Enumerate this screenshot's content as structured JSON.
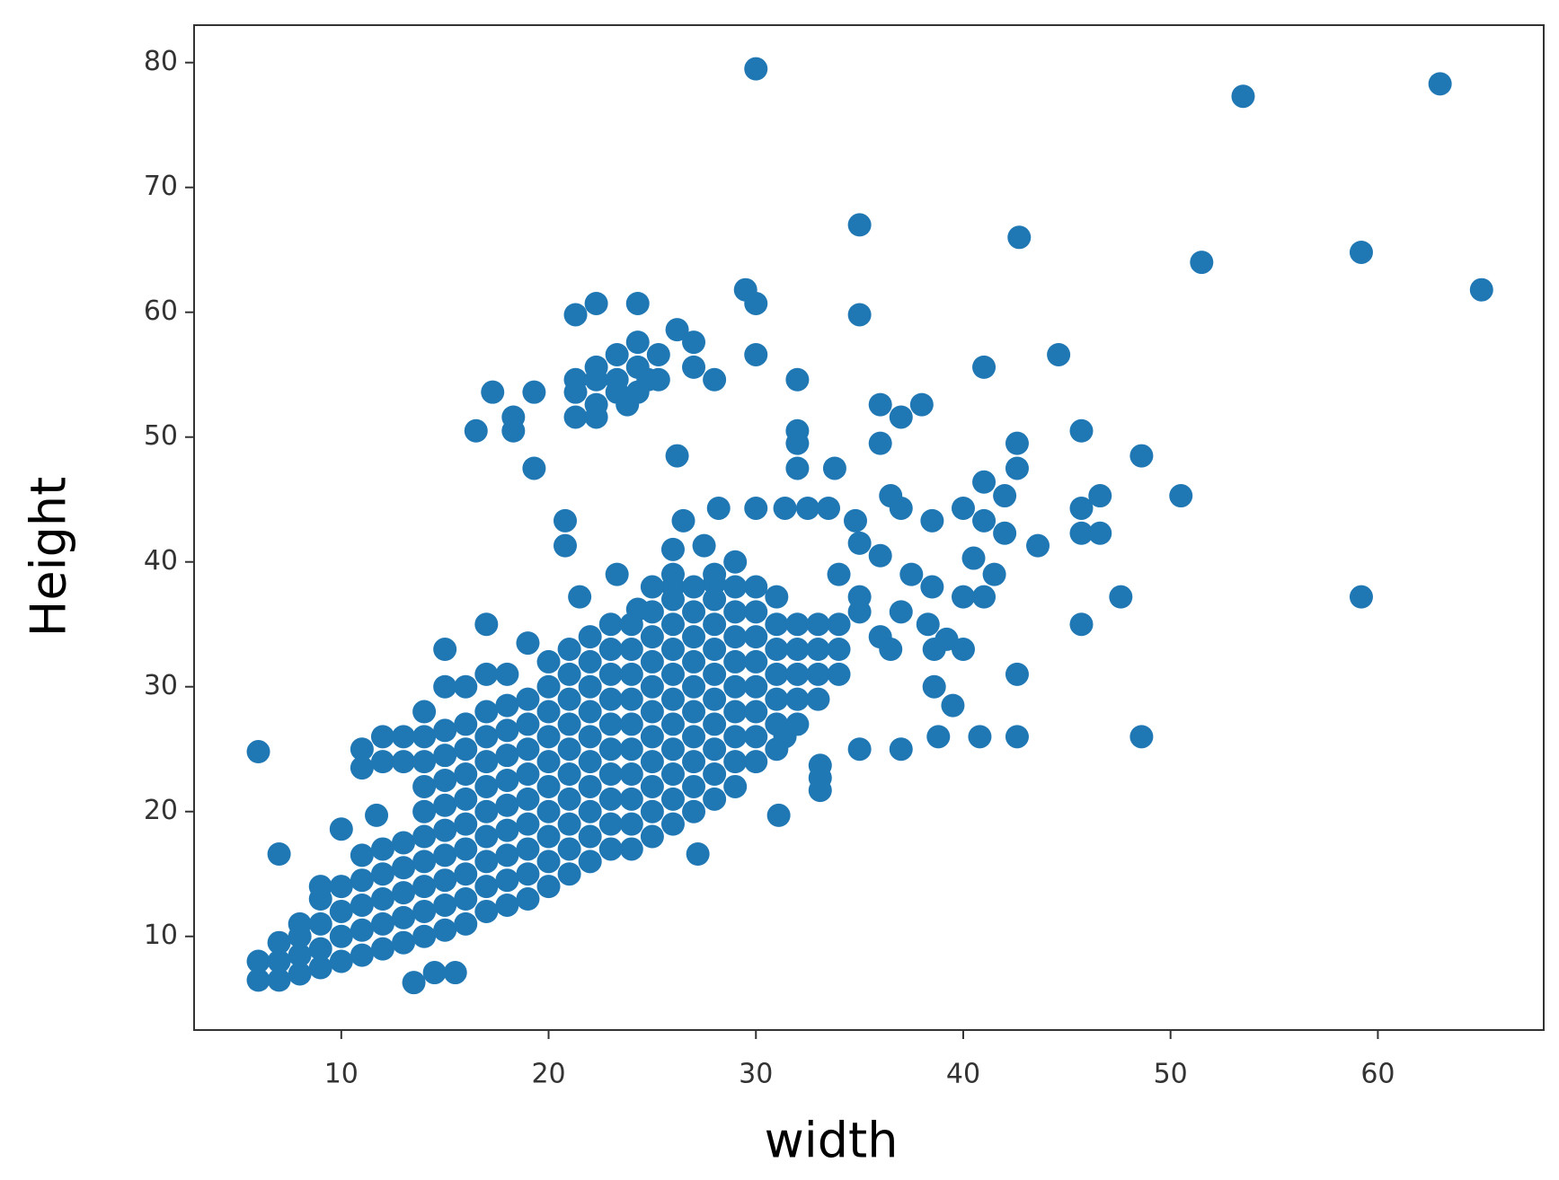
{
  "chart_data": {
    "type": "scatter",
    "x_label": "width",
    "y_label": "Height",
    "color": "#1f77b4",
    "grid": false,
    "xlim": [
      2.9,
      68
    ],
    "ylim": [
      2.5,
      83
    ],
    "xticks": [
      10,
      20,
      30,
      40,
      50,
      60
    ],
    "yticks": [
      10,
      20,
      30,
      40,
      50,
      60,
      70,
      80
    ],
    "x": [
      30,
      53.5,
      63,
      35,
      42.7,
      51.5,
      59.2,
      65,
      29.5,
      30,
      22.3,
      21.3,
      24.3,
      35,
      30,
      41,
      44.6,
      32,
      28,
      36,
      37,
      38,
      17.3,
      19.3,
      16.5,
      18.3,
      18.3,
      26.2,
      32,
      32,
      32,
      36,
      42.6,
      42.6,
      45.7,
      48.6,
      50.5,
      33.8,
      19.3,
      20.8,
      20.8,
      43.6,
      45.7,
      46.6,
      45.7,
      46.6,
      47.6,
      59.2,
      45.7,
      48.6,
      42.6,
      40.8,
      38.8,
      42.6,
      40,
      39.5,
      38.6,
      37,
      35,
      31.4,
      31.1,
      27.2,
      33.1,
      33.1,
      33.1,
      6,
      7,
      10,
      11.7,
      13.5,
      14.5,
      15.5,
      21.3,
      21.3,
      21.3,
      22.3,
      22.3,
      22.3,
      22.3,
      23.3,
      23.3,
      23.3,
      24.3,
      24.3,
      24.3,
      25.3,
      25.3,
      26.2,
      27,
      27,
      24.8,
      23.8,
      28.2,
      30,
      31.4,
      32.5,
      33.5,
      34.8,
      36.5,
      37,
      38.5,
      40,
      41,
      42,
      41,
      42,
      40.5,
      41.5,
      41,
      40,
      38.5,
      37.5,
      36,
      35,
      34,
      35,
      37,
      36,
      38.3,
      39.2,
      38.6,
      36.5,
      35,
      26.5,
      27.5,
      26,
      21.5,
      23.3,
      24.3,
      26,
      29,
      28,
      30,
      31,
      6,
      6,
      7,
      7,
      7,
      8,
      8,
      8,
      8,
      9,
      9,
      9,
      9,
      9,
      10,
      10,
      10,
      10,
      11,
      11,
      11,
      11,
      11,
      11,
      11,
      12,
      12,
      12,
      12,
      12,
      12,
      12,
      13,
      13,
      13,
      13,
      13,
      13,
      13,
      14,
      14,
      14,
      14,
      14,
      14,
      14,
      14,
      14,
      14,
      15,
      15,
      15,
      15,
      15,
      15,
      15,
      15,
      15,
      15,
      15,
      16,
      16,
      16,
      16,
      16,
      16,
      16,
      16,
      16,
      16,
      17,
      17,
      17,
      17,
      17,
      17,
      17,
      17,
      17,
      17,
      17,
      18,
      18,
      18,
      18,
      18,
      18,
      18,
      18,
      18,
      18,
      19,
      19,
      19,
      19,
      19,
      19,
      19,
      19,
      19,
      19,
      20,
      20,
      20,
      20,
      20,
      20,
      20,
      20,
      20,
      20,
      21,
      21,
      21,
      21,
      21,
      21,
      21,
      21,
      21,
      21,
      22,
      22,
      22,
      22,
      22,
      22,
      22,
      22,
      22,
      22,
      23,
      23,
      23,
      23,
      23,
      23,
      23,
      23,
      23,
      23,
      24,
      24,
      24,
      24,
      24,
      24,
      24,
      24,
      24,
      24,
      25,
      25,
      25,
      25,
      25,
      25,
      25,
      25,
      25,
      25,
      25,
      26,
      26,
      26,
      26,
      26,
      26,
      26,
      26,
      26,
      26,
      26,
      27,
      27,
      27,
      27,
      27,
      27,
      27,
      27,
      27,
      27,
      28,
      28,
      28,
      28,
      28,
      28,
      28,
      28,
      28,
      28,
      29,
      29,
      29,
      29,
      29,
      29,
      29,
      29,
      29,
      30,
      30,
      30,
      30,
      30,
      30,
      30,
      31,
      31,
      31,
      31,
      31,
      31,
      32,
      32,
      32,
      32,
      32,
      33,
      33,
      33,
      33,
      34,
      34,
      34
    ],
    "values": [
      79.5,
      77.3,
      78.3,
      67,
      66,
      64,
      64.8,
      61.8,
      61.8,
      60.7,
      60.7,
      59.8,
      60.7,
      59.8,
      56.6,
      55.6,
      56.6,
      54.6,
      54.6,
      52.6,
      51.6,
      52.6,
      53.6,
      53.6,
      50.5,
      51.6,
      50.5,
      48.5,
      50.5,
      49.5,
      47.5,
      49.5,
      49.5,
      47.5,
      50.5,
      48.5,
      45.3,
      47.5,
      47.5,
      43.3,
      41.3,
      41.3,
      44.3,
      45.3,
      42.3,
      42.3,
      37.2,
      37.2,
      35,
      26,
      26,
      26,
      26,
      31,
      33,
      28.5,
      30,
      25,
      25,
      26,
      19.7,
      16.6,
      21.7,
      22.7,
      23.7,
      24.8,
      16.6,
      18.6,
      19.7,
      6.3,
      7.1,
      7.1,
      54.6,
      53.6,
      51.6,
      55.6,
      54.6,
      52.6,
      51.6,
      56.6,
      54.6,
      53.6,
      57.6,
      55.6,
      53.6,
      56.6,
      54.6,
      58.6,
      57.6,
      55.6,
      54.6,
      52.6,
      44.3,
      44.3,
      44.3,
      44.3,
      44.3,
      43.3,
      45.3,
      44.3,
      43.3,
      44.3,
      46.4,
      45.3,
      43.3,
      42.3,
      40.3,
      39,
      37.2,
      37.2,
      38,
      39,
      40.5,
      41.5,
      39,
      37.2,
      36,
      34,
      35,
      33.8,
      33,
      33,
      36,
      43.3,
      41.3,
      41,
      37.2,
      39,
      36.2,
      38,
      40,
      38.3,
      38,
      37.2,
      6.5,
      8,
      6.5,
      8,
      9.5,
      7,
      8.5,
      10,
      11,
      7.5,
      9,
      11,
      13,
      14,
      8,
      10,
      12,
      14,
      8.5,
      10.5,
      12.5,
      14.5,
      16.5,
      23.5,
      25,
      9,
      11,
      13,
      15,
      17,
      24,
      26,
      9.5,
      11.5,
      13.5,
      15.5,
      17.5,
      24,
      26,
      10,
      12,
      14,
      16,
      18,
      20,
      22,
      24,
      26,
      28,
      10.5,
      12.5,
      14.5,
      16.5,
      18.5,
      20.5,
      22.5,
      24.5,
      26.5,
      30,
      33,
      11,
      13,
      15,
      17,
      19,
      21,
      23,
      25,
      27,
      30,
      12,
      14,
      16,
      18,
      20,
      22,
      24,
      26,
      28,
      31,
      35,
      12.5,
      14.5,
      16.5,
      18.5,
      20.5,
      22.5,
      24.5,
      26.5,
      28.5,
      31,
      13,
      15,
      17,
      19,
      21,
      23,
      25,
      27,
      29,
      33.5,
      14,
      16,
      18,
      20,
      22,
      24,
      26,
      28,
      30,
      32,
      15,
      17,
      19,
      21,
      23,
      25,
      27,
      29,
      31,
      33,
      16,
      18,
      20,
      22,
      24,
      26,
      28,
      30,
      32,
      34,
      17,
      19,
      21,
      23,
      25,
      27,
      29,
      31,
      33,
      35,
      17,
      19,
      21,
      23,
      25,
      27,
      29,
      31,
      33,
      35,
      18,
      20,
      22,
      24,
      26,
      28,
      30,
      32,
      34,
      36,
      38,
      19,
      21,
      23,
      25,
      27,
      29,
      31,
      33,
      35,
      37,
      39,
      20,
      22,
      24,
      26,
      28,
      30,
      32,
      34,
      36,
      38,
      21,
      23,
      25,
      27,
      29,
      31,
      33,
      35,
      37,
      39,
      22,
      24,
      26,
      28,
      30,
      32,
      34,
      36,
      38,
      24,
      26,
      28,
      30,
      32,
      34,
      36,
      25,
      27,
      29,
      31,
      33,
      35,
      27,
      29,
      31,
      33,
      35,
      29,
      31,
      33,
      35,
      31,
      33,
      35
    ]
  }
}
